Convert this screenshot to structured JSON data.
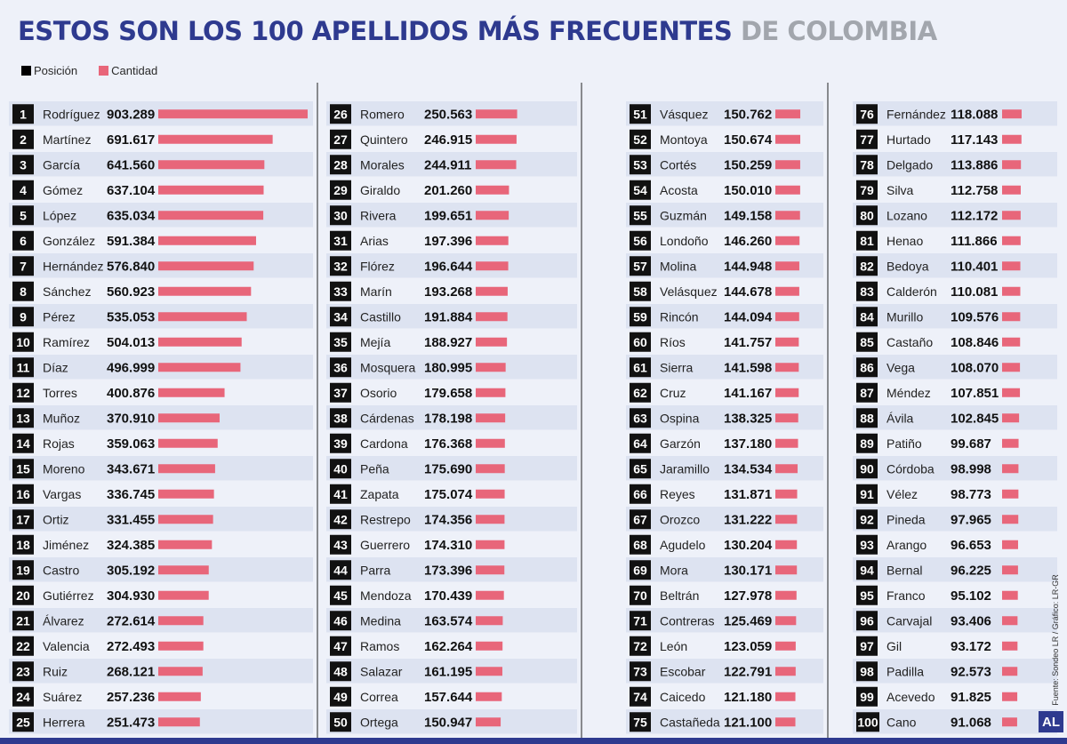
{
  "title": {
    "main": "ESTOS SON LOS 100 APELLIDOS MÁS FRECUENTES",
    "accent": "DE COLOMBIA"
  },
  "legend": {
    "position_label": "Posición",
    "count_label": "Cantidad",
    "position_color": "#000000",
    "count_color": "#e8667a"
  },
  "source": "Fuente: Sondeo LR / Gráfico: LR-GR",
  "logo": "AL",
  "colors": {
    "title": "#2e3a8f",
    "title_accent": "#a2a6ad",
    "bar": "#e8667a",
    "badge": "#111111",
    "row_shade": "#dde3f1"
  },
  "chart_data": {
    "type": "bar",
    "orientation": "horizontal",
    "positions": [
      1,
      2,
      3,
      4,
      5,
      6,
      7,
      8,
      9,
      10,
      11,
      12,
      13,
      14,
      15,
      16,
      17,
      18,
      19,
      20,
      21,
      22,
      23,
      24,
      25,
      26,
      27,
      28,
      29,
      30,
      31,
      32,
      33,
      34,
      35,
      36,
      37,
      38,
      39,
      40,
      41,
      42,
      43,
      44,
      45,
      46,
      47,
      48,
      49,
      50,
      51,
      52,
      53,
      54,
      55,
      56,
      57,
      58,
      59,
      60,
      61,
      62,
      63,
      64,
      65,
      66,
      67,
      68,
      69,
      70,
      71,
      72,
      73,
      74,
      75,
      76,
      77,
      78,
      79,
      80,
      81,
      82,
      83,
      84,
      85,
      86,
      87,
      88,
      89,
      90,
      91,
      92,
      93,
      94,
      95,
      96,
      97,
      98,
      99,
      100
    ],
    "categories": [
      "Rodríguez",
      "Martínez",
      "García",
      "Gómez",
      "López",
      "González",
      "Hernández",
      "Sánchez",
      "Pérez",
      "Ramírez",
      "Díaz",
      "Torres",
      "Muñoz",
      "Rojas",
      "Moreno",
      "Vargas",
      "Ortiz",
      "Jiménez",
      "Castro",
      "Gutiérrez",
      "Álvarez",
      "Valencia",
      "Ruiz",
      "Suárez",
      "Herrera",
      "Romero",
      "Quintero",
      "Morales",
      "Giraldo",
      "Rivera",
      "Arias",
      "Flórez",
      "Marín",
      "Castillo",
      "Mejía",
      "Mosquera",
      "Osorio",
      "Cárdenas",
      "Cardona",
      "Peña",
      "Zapata",
      "Restrepo",
      "Guerrero",
      "Parra",
      "Mendoza",
      "Medina",
      "Ramos",
      "Salazar",
      "Correa",
      "Ortega",
      "Vásquez",
      "Montoya",
      "Cortés",
      "Acosta",
      "Guzmán",
      "Londoño",
      "Molina",
      "Velásquez",
      "Rincón",
      "Ríos",
      "Sierra",
      "Cruz",
      "Ospina",
      "Garzón",
      "Jaramillo",
      "Reyes",
      "Orozco",
      "Agudelo",
      "Mora",
      "Beltrán",
      "Contreras",
      "León",
      "Escobar",
      "Caicedo",
      "Castañeda",
      "Fernández",
      "Hurtado",
      "Delgado",
      "Silva",
      "Lozano",
      "Henao",
      "Bedoya",
      "Calderón",
      "Murillo",
      "Castaño",
      "Vega",
      "Méndez",
      "Ávila",
      "Patiño",
      "Córdoba",
      "Vélez",
      "Pineda",
      "Arango",
      "Bernal",
      "Franco",
      "Carvajal",
      "Gil",
      "Padilla",
      "Acevedo",
      "Cano"
    ],
    "values": [
      903289,
      691617,
      641560,
      637104,
      635034,
      591384,
      576840,
      560923,
      535053,
      504013,
      496999,
      400876,
      370910,
      359063,
      343671,
      336745,
      331455,
      324385,
      305192,
      304930,
      272614,
      272493,
      268121,
      257236,
      251473,
      250563,
      246915,
      244911,
      201260,
      199651,
      197396,
      196644,
      193268,
      191884,
      188927,
      180995,
      179658,
      178198,
      176368,
      175690,
      175074,
      174356,
      174310,
      173396,
      170439,
      163574,
      162264,
      161195,
      157644,
      150947,
      150762,
      150674,
      150259,
      150010,
      149158,
      146260,
      144948,
      144678,
      144094,
      141757,
      141598,
      141167,
      138325,
      137180,
      134534,
      131871,
      131222,
      130204,
      130171,
      127978,
      125469,
      123059,
      122791,
      121180,
      121100,
      118088,
      117143,
      113886,
      112758,
      112172,
      111866,
      110401,
      110081,
      109576,
      108846,
      108070,
      107851,
      102845,
      99687,
      98998,
      98773,
      97965,
      96653,
      96225,
      95102,
      93406,
      93172,
      92573,
      91825,
      91068
    ],
    "value_labels": [
      "903.289",
      "691.617",
      "641.560",
      "637.104",
      "635.034",
      "591.384",
      "576.840",
      "560.923",
      "535.053",
      "504.013",
      "496.999",
      "400.876",
      "370.910",
      "359.063",
      "343.671",
      "336.745",
      "331.455",
      "324.385",
      "305.192",
      "304.930",
      "272.614",
      "272.493",
      "268.121",
      "257.236",
      "251.473",
      "250.563",
      "246.915",
      "244.911",
      "201.260",
      "199.651",
      "197.396",
      "196.644",
      "193.268",
      "191.884",
      "188.927",
      "180.995",
      "179.658",
      "178.198",
      "176.368",
      "175.690",
      "175.074",
      "174.356",
      "174.310",
      "173.396",
      "170.439",
      "163.574",
      "162.264",
      "161.195",
      "157.644",
      "150.947",
      "150.762",
      "150.674",
      "150.259",
      "150.010",
      "149.158",
      "146.260",
      "144.948",
      "144.678",
      "144.094",
      "141.757",
      "141.598",
      "141.167",
      "138.325",
      "137.180",
      "134.534",
      "131.871",
      "131.222",
      "130.204",
      "130.171",
      "127.978",
      "125.469",
      "123.059",
      "122.791",
      "121.180",
      "121.100",
      "118.088",
      "117.143",
      "113.886",
      "112.758",
      "112.172",
      "111.866",
      "110.401",
      "110.081",
      "109.576",
      "108.846",
      "108.070",
      "107.851",
      "102.845",
      "99.687",
      "98.998",
      "98.773",
      "97.965",
      "96.653",
      "96.225",
      "95.102",
      "93.406",
      "93.172",
      "92.573",
      "91.825",
      "91.068"
    ]
  }
}
